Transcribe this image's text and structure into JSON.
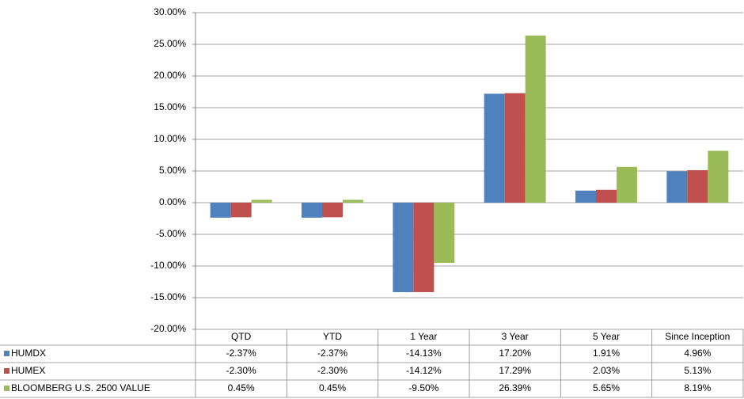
{
  "chart_data": {
    "type": "bar",
    "categories": [
      "QTD",
      "YTD",
      "1 Year",
      "3 Year",
      "5 Year",
      "Since Inception"
    ],
    "series": [
      {
        "name": "HUMDX",
        "color": "#4f81bd",
        "values": [
          -2.37,
          -2.37,
          -14.13,
          17.2,
          1.91,
          4.96
        ],
        "value_labels": [
          "-2.37%",
          "-2.37%",
          "-14.13%",
          "17.20%",
          "1.91%",
          "4.96%"
        ]
      },
      {
        "name": "HUMEX",
        "color": "#c0504d",
        "values": [
          -2.3,
          -2.3,
          -14.12,
          17.29,
          2.03,
          5.13
        ],
        "value_labels": [
          "-2.30%",
          "-2.30%",
          "-14.12%",
          "17.29%",
          "2.03%",
          "5.13%"
        ]
      },
      {
        "name": "BLOOMBERG U.S. 2500 VALUE",
        "color": "#9bbb59",
        "values": [
          0.45,
          0.45,
          -9.5,
          26.39,
          5.65,
          8.19
        ],
        "value_labels": [
          "0.45%",
          "0.45%",
          "-9.50%",
          "26.39%",
          "5.65%",
          "8.19%"
        ]
      }
    ],
    "ylim": [
      -20,
      30
    ],
    "yticks": [
      {
        "value": -20,
        "label": "-20.00%"
      },
      {
        "value": -15,
        "label": "-15.00%"
      },
      {
        "value": -10,
        "label": "-10.00%"
      },
      {
        "value": -5,
        "label": "-5.00%"
      },
      {
        "value": 0,
        "label": "0.00%"
      },
      {
        "value": 5,
        "label": "5.00%"
      },
      {
        "value": 10,
        "label": "10.00%"
      },
      {
        "value": 15,
        "label": "15.00%"
      },
      {
        "value": 20,
        "label": "20.00%"
      },
      {
        "value": 25,
        "label": "25.00%"
      },
      {
        "value": 30,
        "label": "30.00%"
      }
    ],
    "grid": true
  }
}
